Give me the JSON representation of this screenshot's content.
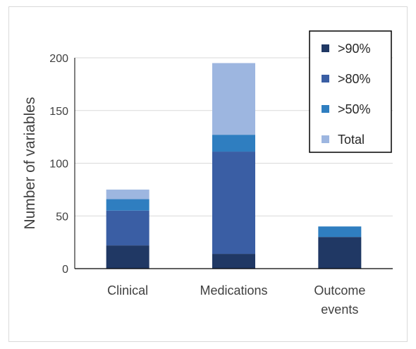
{
  "chart_data": {
    "type": "bar",
    "stacked": true,
    "title": "",
    "xlabel": "",
    "ylabel": "Number of variables",
    "ylim": [
      0,
      200
    ],
    "yticks": [
      0,
      50,
      100,
      150,
      200
    ],
    "categories": [
      [
        "Clinical"
      ],
      [
        "Medications"
      ],
      [
        "Outcome",
        "events"
      ]
    ],
    "series": [
      {
        "name": ">90%",
        "color": "#203864",
        "values": [
          22,
          14,
          30
        ]
      },
      {
        "name": ">80%",
        "color": "#3a5ea4",
        "values": [
          33,
          97,
          0
        ]
      },
      {
        "name": ">50%",
        "color": "#2f7ec0",
        "values": [
          11,
          16,
          10
        ]
      },
      {
        "name": "Total",
        "color": "#9db6e0",
        "values": [
          9,
          68,
          0
        ]
      }
    ],
    "grid": true,
    "legend": "top-right"
  }
}
